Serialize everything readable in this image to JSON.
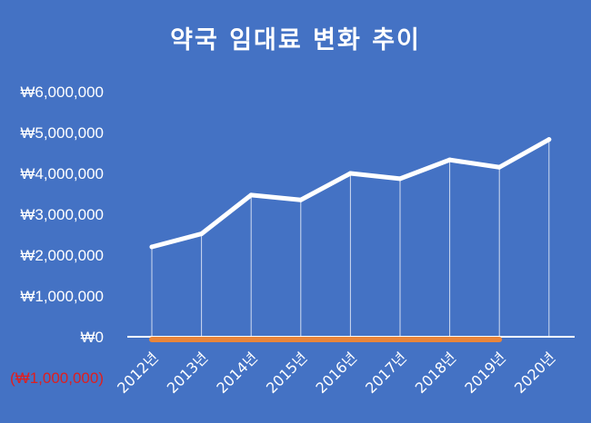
{
  "chart_data": {
    "type": "line",
    "title": "약국 임대료 변화 추이",
    "categories": [
      "2012년",
      "2013년",
      "2014년",
      "2015년",
      "2016년",
      "2017년",
      "2018년",
      "2019년",
      "2020년"
    ],
    "series": [
      {
        "values": [
          2200000,
          2520000,
          3470000,
          3350000,
          4000000,
          3870000,
          4330000,
          4150000,
          4830000
        ]
      }
    ],
    "baseline_bar": {
      "from": "2012년",
      "to": "2019년",
      "value": 0
    },
    "y_ticks": [
      {
        "value": 6000000,
        "label": "₩6,000,000"
      },
      {
        "value": 5000000,
        "label": "₩5,000,000"
      },
      {
        "value": 4000000,
        "label": "₩4,000,000"
      },
      {
        "value": 3000000,
        "label": "₩3,000,000"
      },
      {
        "value": 2000000,
        "label": "₩2,000,000"
      },
      {
        "value": 1000000,
        "label": "₩1,000,000"
      },
      {
        "value": 0,
        "label": "₩0"
      },
      {
        "value": -1000000,
        "label": "(₩1,000,000)",
        "negative": true
      }
    ],
    "ylim": [
      -1000000,
      6000000
    ],
    "grid": false,
    "drop_lines": true,
    "colors": {
      "background": "#4472C4",
      "line": "#FFFFFF",
      "baseline_bar": "#E9853A",
      "negative_tick": "#E01E1E"
    }
  }
}
